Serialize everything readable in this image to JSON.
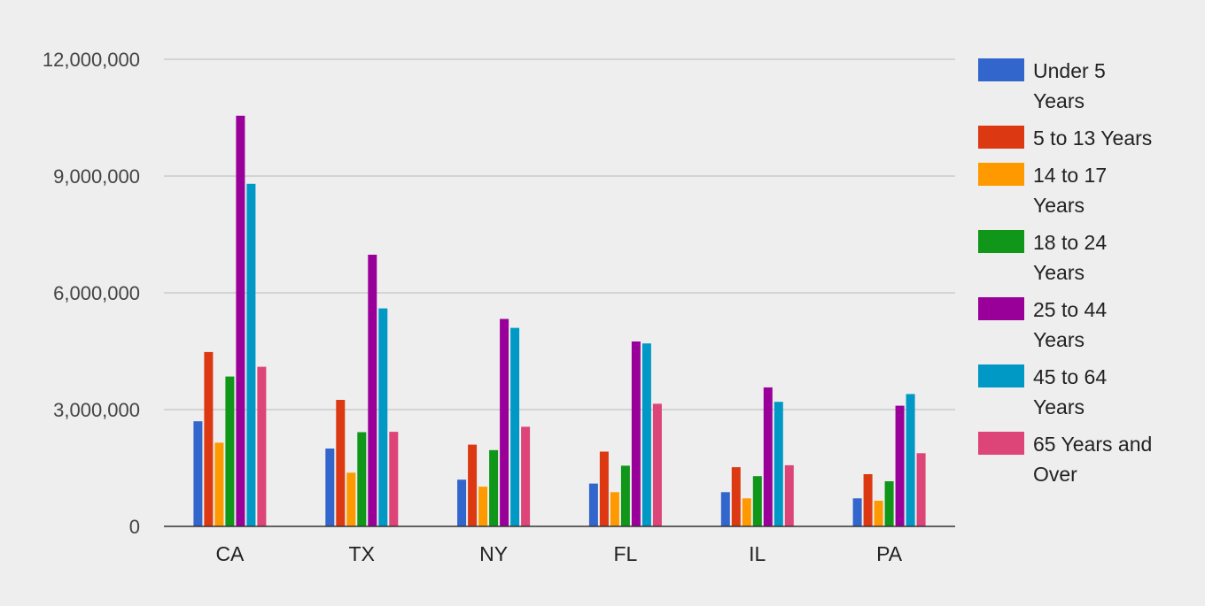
{
  "chart_data": {
    "type": "bar",
    "categories": [
      "CA",
      "TX",
      "NY",
      "FL",
      "IL",
      "PA"
    ],
    "ylim": [
      0,
      12000000
    ],
    "y_ticks": [
      {
        "value": 0,
        "label": "0"
      },
      {
        "value": 3000000,
        "label": "3,000,000"
      },
      {
        "value": 6000000,
        "label": "6,000,000"
      },
      {
        "value": 9000000,
        "label": "9,000,000"
      },
      {
        "value": 12000000,
        "label": "12,000,000"
      }
    ],
    "grid": true,
    "legend_position": "right",
    "series": [
      {
        "name": "Under 5 Years",
        "legend_lines": [
          "Under 5",
          "Years"
        ],
        "color": "#3366cc",
        "values": [
          2700000,
          2000000,
          1200000,
          1100000,
          880000,
          720000
        ]
      },
      {
        "name": "5 to 13 Years",
        "legend_lines": [
          "5 to 13 Years"
        ],
        "color": "#dc3912",
        "values": [
          4480000,
          3250000,
          2100000,
          1920000,
          1520000,
          1340000
        ]
      },
      {
        "name": "14 to 17 Years",
        "legend_lines": [
          "14 to 17",
          "Years"
        ],
        "color": "#ff9900",
        "values": [
          2150000,
          1380000,
          1020000,
          880000,
          720000,
          660000
        ]
      },
      {
        "name": "18 to 24 Years",
        "legend_lines": [
          "18 to 24",
          "Years"
        ],
        "color": "#109618",
        "values": [
          3850000,
          2420000,
          1960000,
          1560000,
          1290000,
          1160000
        ]
      },
      {
        "name": "25 to 44 Years",
        "legend_lines": [
          "25 to 44",
          "Years"
        ],
        "color": "#990099",
        "values": [
          10550000,
          6980000,
          5330000,
          4750000,
          3570000,
          3100000
        ]
      },
      {
        "name": "45 to 64 Years",
        "legend_lines": [
          "45 to 64",
          "Years"
        ],
        "color": "#0099c6",
        "values": [
          8800000,
          5600000,
          5100000,
          4700000,
          3200000,
          3400000
        ]
      },
      {
        "name": "65 Years and Over",
        "legend_lines": [
          "65 Years and",
          "Over"
        ],
        "color": "#dd4477",
        "values": [
          4100000,
          2430000,
          2560000,
          3150000,
          1570000,
          1880000
        ]
      }
    ]
  }
}
